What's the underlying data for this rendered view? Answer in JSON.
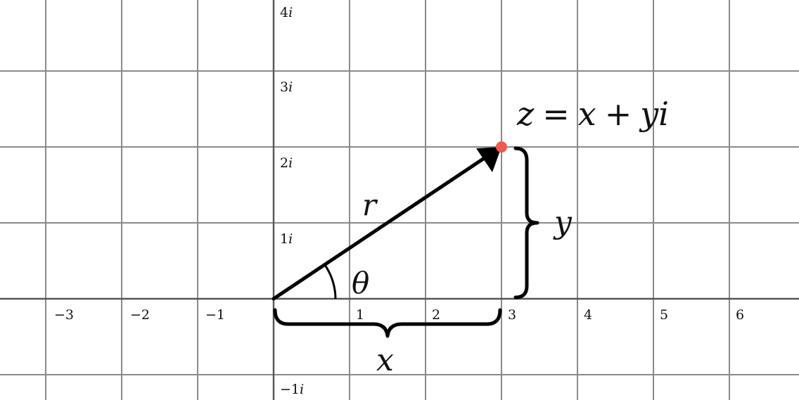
{
  "plane": {
    "x_ticks": [
      "−3",
      "−2",
      "−1",
      "1",
      "2",
      "3",
      "4",
      "5",
      "6"
    ],
    "y_ticks": [
      "4",
      "3",
      "2",
      "1",
      "−1"
    ],
    "imag_unit": "i"
  },
  "point": {
    "x": 3,
    "y": 2,
    "color": "#f05a50",
    "equation": {
      "z": "z",
      "eq": "=",
      "x": "x",
      "plus": "+",
      "y": "y",
      "i": "i"
    }
  },
  "labels": {
    "modulus": "r",
    "angle": "θ",
    "real_part": "x",
    "imag_part": "y"
  }
}
